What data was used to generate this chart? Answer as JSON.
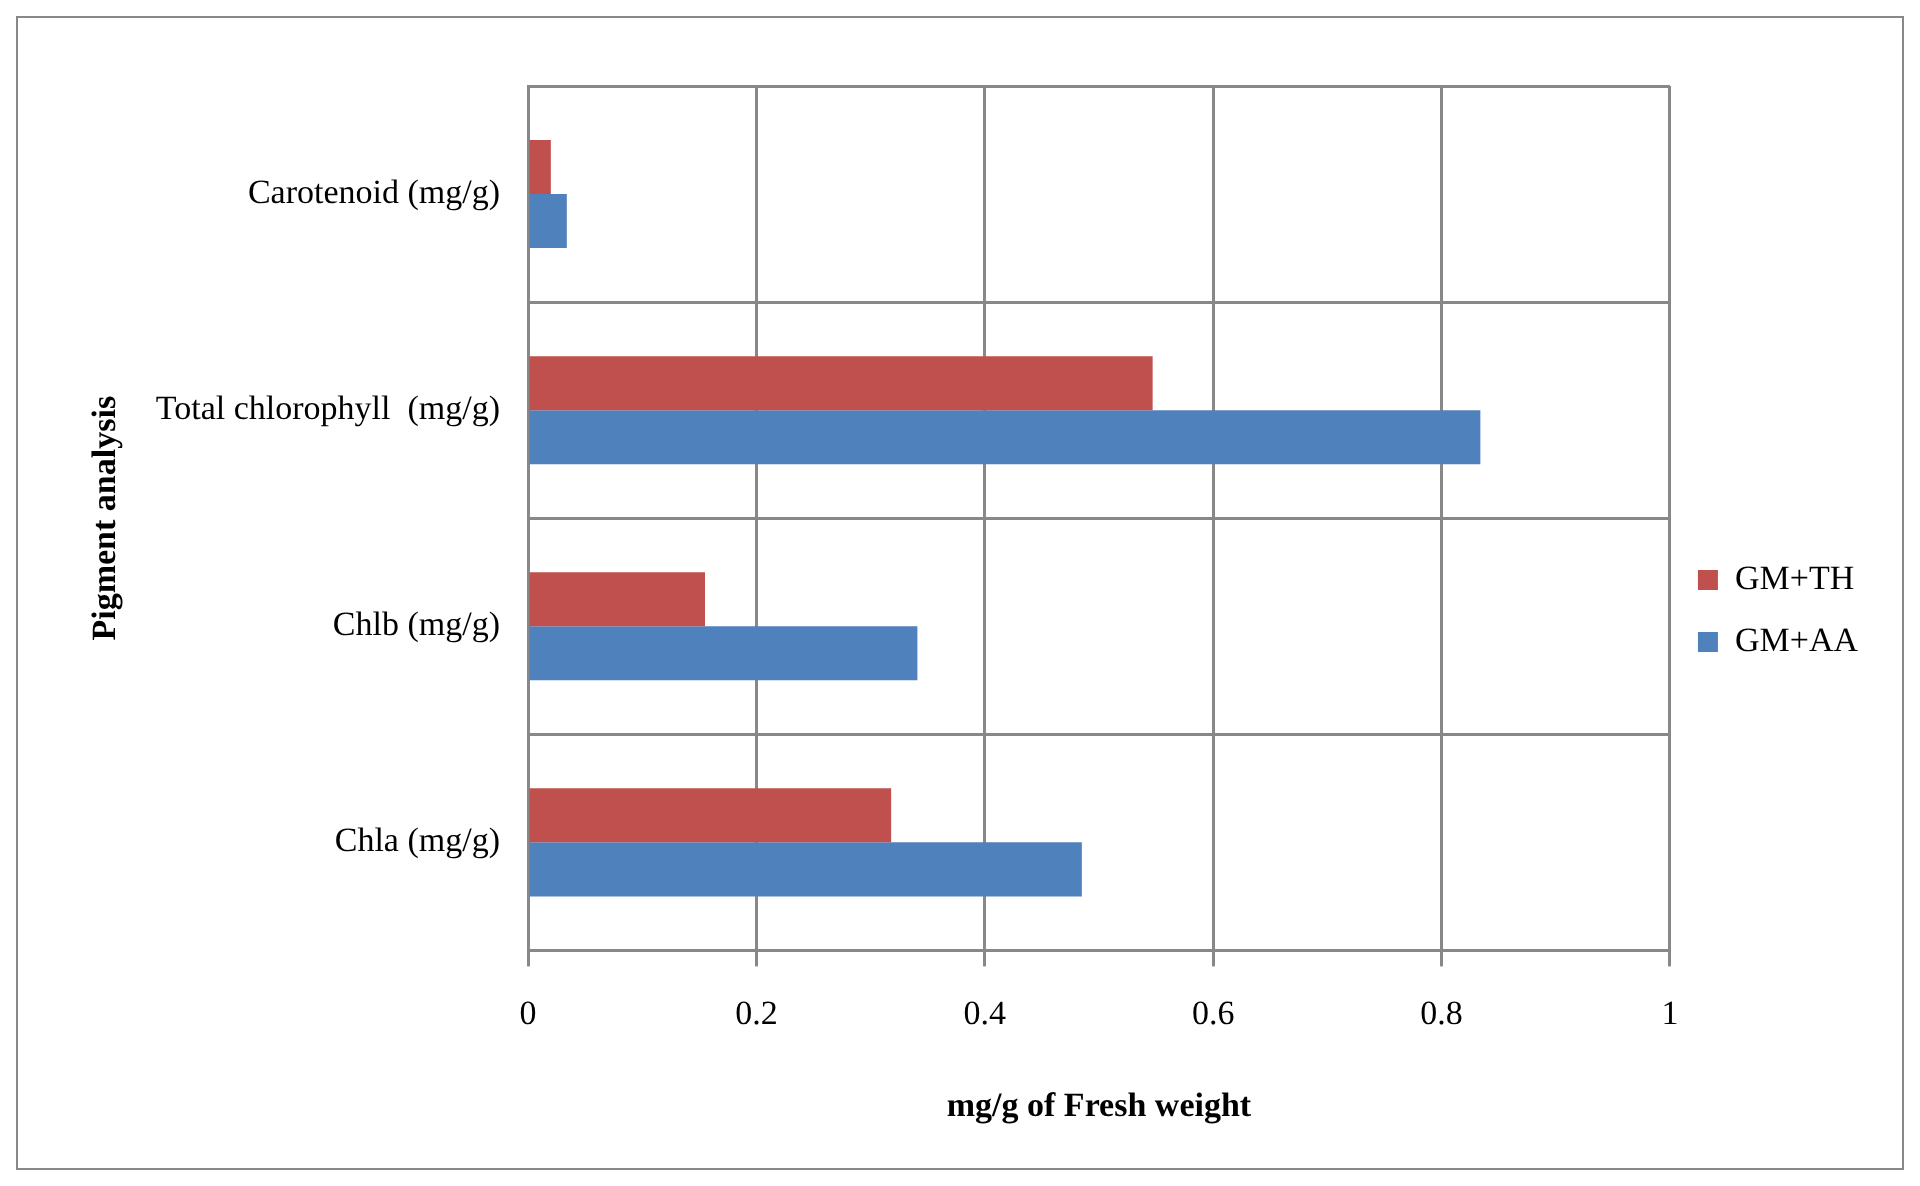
{
  "chart_data": {
    "type": "bar",
    "orientation": "horizontal",
    "xlabel": "mg/g of Fresh weight",
    "ylabel": "Pigment analysis",
    "categories": [
      "Carotenoid (mg/g)",
      "Total chlorophyll  (mg/g)",
      "Chlb (mg/g)",
      "Chla (mg/g)"
    ],
    "series": [
      {
        "name": "GM+TH",
        "color": "#c0504d",
        "values": [
          0.02,
          0.547,
          0.155,
          0.318
        ]
      },
      {
        "name": "GM+AA",
        "color": "#4f81bd",
        "values": [
          0.034,
          0.834,
          0.341,
          0.485
        ]
      }
    ],
    "xlim": [
      0,
      1
    ],
    "xticks": [
      0,
      0.2,
      0.4,
      0.6,
      0.8,
      1
    ],
    "grid": true,
    "legend": "right"
  }
}
